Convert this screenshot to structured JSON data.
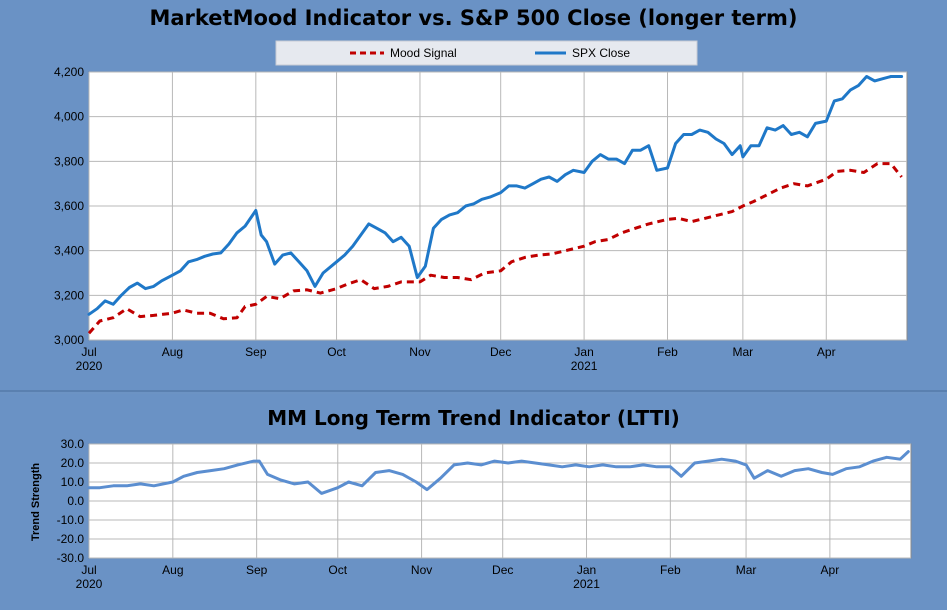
{
  "chart_data": [
    {
      "type": "line",
      "title": "MarketMood Indicator vs. S&P 500 Close (longer term)",
      "xlabel": "",
      "ylabel": "",
      "ylim": [
        3000,
        4200
      ],
      "y_ticks": [
        "3,000",
        "3,200",
        "3,400",
        "3,600",
        "3,800",
        "4,000",
        "4,200"
      ],
      "x_ticks": [
        "Jul",
        "Aug",
        "Sep",
        "Oct",
        "Nov",
        "Dec",
        "Jan",
        "Feb",
        "Mar",
        "Apr"
      ],
      "x_year_labels": [
        {
          "at": "Jul",
          "label": "2020"
        },
        {
          "at": "Jan",
          "label": "2021"
        }
      ],
      "xlim": [
        "2020-07-01",
        "2021-05-01"
      ],
      "grid": true,
      "legend": "top-center",
      "colors": {
        "mood": "#c00000",
        "spx": "#1f78c8"
      },
      "series": [
        {
          "name": "Mood Signal",
          "style": "dashed",
          "x": [
            "2020-07-01",
            "2020-07-05",
            "2020-07-10",
            "2020-07-15",
            "2020-07-20",
            "2020-07-25",
            "2020-08-01",
            "2020-08-05",
            "2020-08-10",
            "2020-08-15",
            "2020-08-20",
            "2020-08-25",
            "2020-08-28",
            "2020-09-01",
            "2020-09-05",
            "2020-09-10",
            "2020-09-15",
            "2020-09-20",
            "2020-09-25",
            "2020-10-01",
            "2020-10-05",
            "2020-10-10",
            "2020-10-15",
            "2020-10-20",
            "2020-10-25",
            "2020-11-01",
            "2020-11-05",
            "2020-11-10",
            "2020-11-15",
            "2020-11-20",
            "2020-11-25",
            "2020-12-01",
            "2020-12-05",
            "2020-12-10",
            "2020-12-15",
            "2020-12-20",
            "2020-12-25",
            "2021-01-01",
            "2021-01-05",
            "2021-01-10",
            "2021-01-15",
            "2021-01-20",
            "2021-01-25",
            "2021-02-01",
            "2021-02-05",
            "2021-02-10",
            "2021-02-15",
            "2021-02-20",
            "2021-02-25",
            "2021-03-01",
            "2021-03-05",
            "2021-03-10",
            "2021-03-15",
            "2021-03-20",
            "2021-03-25",
            "2021-04-01",
            "2021-04-05",
            "2021-04-10",
            "2021-04-15",
            "2021-04-20",
            "2021-04-25",
            "2021-04-29"
          ],
          "values": [
            3030,
            3085,
            3100,
            3140,
            3105,
            3110,
            3120,
            3135,
            3120,
            3120,
            3095,
            3100,
            3150,
            3160,
            3195,
            3185,
            3220,
            3225,
            3210,
            3230,
            3250,
            3270,
            3230,
            3240,
            3260,
            3260,
            3290,
            3280,
            3280,
            3270,
            3300,
            3310,
            3350,
            3370,
            3380,
            3385,
            3400,
            3420,
            3440,
            3450,
            3480,
            3500,
            3520,
            3540,
            3545,
            3530,
            3545,
            3560,
            3575,
            3600,
            3620,
            3650,
            3680,
            3700,
            3690,
            3720,
            3755,
            3760,
            3750,
            3790,
            3790,
            3730
          ]
        },
        {
          "name": "SPX Close",
          "style": "solid",
          "x": [
            "2020-07-01",
            "2020-07-04",
            "2020-07-07",
            "2020-07-10",
            "2020-07-13",
            "2020-07-16",
            "2020-07-19",
            "2020-07-22",
            "2020-07-25",
            "2020-07-28",
            "2020-08-01",
            "2020-08-04",
            "2020-08-07",
            "2020-08-10",
            "2020-08-13",
            "2020-08-16",
            "2020-08-19",
            "2020-08-22",
            "2020-08-25",
            "2020-08-28",
            "2020-09-01",
            "2020-09-03",
            "2020-09-05",
            "2020-09-08",
            "2020-09-11",
            "2020-09-14",
            "2020-09-17",
            "2020-09-20",
            "2020-09-23",
            "2020-09-26",
            "2020-10-01",
            "2020-10-04",
            "2020-10-07",
            "2020-10-10",
            "2020-10-13",
            "2020-10-16",
            "2020-10-19",
            "2020-10-22",
            "2020-10-25",
            "2020-10-28",
            "2020-10-31",
            "2020-11-03",
            "2020-11-06",
            "2020-11-09",
            "2020-11-12",
            "2020-11-15",
            "2020-11-18",
            "2020-11-21",
            "2020-11-24",
            "2020-11-27",
            "2020-12-01",
            "2020-12-04",
            "2020-12-07",
            "2020-12-10",
            "2020-12-13",
            "2020-12-16",
            "2020-12-19",
            "2020-12-22",
            "2020-12-25",
            "2020-12-28",
            "2021-01-01",
            "2021-01-04",
            "2021-01-07",
            "2021-01-10",
            "2021-01-13",
            "2021-01-16",
            "2021-01-19",
            "2021-01-22",
            "2021-01-25",
            "2021-01-28",
            "2021-02-01",
            "2021-02-04",
            "2021-02-07",
            "2021-02-10",
            "2021-02-13",
            "2021-02-16",
            "2021-02-19",
            "2021-02-22",
            "2021-02-25",
            "2021-02-28",
            "2021-03-01",
            "2021-03-04",
            "2021-03-07",
            "2021-03-10",
            "2021-03-13",
            "2021-03-16",
            "2021-03-19",
            "2021-03-22",
            "2021-03-25",
            "2021-03-28",
            "2021-04-01",
            "2021-04-04",
            "2021-04-07",
            "2021-04-10",
            "2021-04-13",
            "2021-04-16",
            "2021-04-19",
            "2021-04-22",
            "2021-04-25",
            "2021-04-29"
          ],
          "values": [
            3115,
            3140,
            3175,
            3160,
            3200,
            3235,
            3255,
            3230,
            3240,
            3265,
            3290,
            3310,
            3350,
            3360,
            3375,
            3385,
            3390,
            3430,
            3480,
            3510,
            3580,
            3470,
            3440,
            3340,
            3380,
            3390,
            3350,
            3310,
            3240,
            3300,
            3350,
            3380,
            3420,
            3470,
            3520,
            3500,
            3480,
            3440,
            3460,
            3420,
            3280,
            3330,
            3500,
            3540,
            3560,
            3570,
            3600,
            3610,
            3630,
            3640,
            3660,
            3690,
            3690,
            3680,
            3700,
            3720,
            3730,
            3710,
            3740,
            3760,
            3750,
            3800,
            3830,
            3810,
            3810,
            3790,
            3850,
            3850,
            3870,
            3760,
            3770,
            3880,
            3920,
            3920,
            3940,
            3930,
            3900,
            3880,
            3830,
            3870,
            3820,
            3870,
            3870,
            3950,
            3940,
            3960,
            3920,
            3930,
            3910,
            3970,
            3980,
            4070,
            4080,
            4120,
            4140,
            4180,
            4160,
            4170,
            4180,
            4180
          ]
        }
      ]
    },
    {
      "type": "line",
      "title": "MM Long Term Trend Indicator (LTTI)",
      "xlabel": "",
      "ylabel": "Trend Strength",
      "ylim": [
        -30,
        30
      ],
      "y_ticks": [
        "30.0",
        "20.0",
        "10.0",
        "0.0",
        "-10.0",
        "-20.0",
        "-30.0"
      ],
      "x_ticks": [
        "Jul",
        "Aug",
        "Sep",
        "Oct",
        "Nov",
        "Dec",
        "Jan",
        "Feb",
        "Mar",
        "Apr"
      ],
      "x_year_labels": [
        {
          "at": "Jul",
          "label": "2020"
        },
        {
          "at": "Jan",
          "label": "2021"
        }
      ],
      "xlim": [
        "2020-07-01",
        "2021-05-01"
      ],
      "grid": true,
      "colors": {
        "ltti": "#5b8ed0"
      },
      "series": [
        {
          "style": "solid",
          "x": [
            "2020-07-01",
            "2020-07-05",
            "2020-07-10",
            "2020-07-15",
            "2020-07-20",
            "2020-07-25",
            "2020-08-01",
            "2020-08-05",
            "2020-08-10",
            "2020-08-15",
            "2020-08-20",
            "2020-08-25",
            "2020-08-31",
            "2020-09-02",
            "2020-09-05",
            "2020-09-10",
            "2020-09-15",
            "2020-09-20",
            "2020-09-25",
            "2020-10-01",
            "2020-10-05",
            "2020-10-10",
            "2020-10-15",
            "2020-10-20",
            "2020-10-25",
            "2020-10-30",
            "2020-11-03",
            "2020-11-08",
            "2020-11-13",
            "2020-11-18",
            "2020-11-23",
            "2020-11-28",
            "2020-12-03",
            "2020-12-08",
            "2020-12-13",
            "2020-12-18",
            "2020-12-23",
            "2020-12-28",
            "2021-01-02",
            "2021-01-07",
            "2021-01-12",
            "2021-01-17",
            "2021-01-22",
            "2021-01-27",
            "2021-02-01",
            "2021-02-05",
            "2021-02-10",
            "2021-02-15",
            "2021-02-20",
            "2021-02-25",
            "2021-03-01",
            "2021-03-04",
            "2021-03-09",
            "2021-03-14",
            "2021-03-19",
            "2021-03-24",
            "2021-03-29",
            "2021-04-02",
            "2021-04-07",
            "2021-04-12",
            "2021-04-17",
            "2021-04-22",
            "2021-04-27",
            "2021-04-30"
          ],
          "values": [
            7,
            7,
            8,
            8,
            9,
            8,
            10,
            13,
            15,
            16,
            17,
            19,
            21,
            21,
            14,
            11,
            9,
            10,
            4,
            7,
            10,
            8,
            15,
            16,
            14,
            10,
            6,
            12,
            19,
            20,
            19,
            21,
            20,
            21,
            20,
            19,
            18,
            19,
            18,
            19,
            18,
            18,
            19,
            18,
            18,
            13,
            20,
            21,
            22,
            21,
            19,
            12,
            16,
            13,
            16,
            17,
            15,
            14,
            17,
            18,
            21,
            23,
            22,
            26
          ]
        }
      ]
    }
  ]
}
